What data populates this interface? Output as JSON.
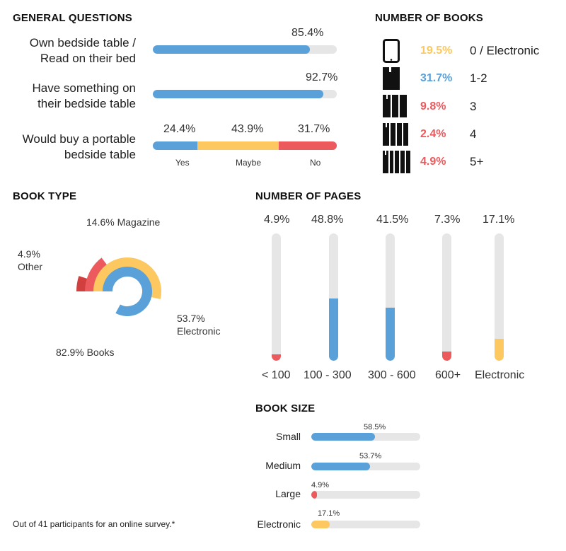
{
  "colors": {
    "blue": "#5aa0d9",
    "yellow": "#fcc85f",
    "red": "#ec5a5e",
    "darkred": "#d23f3f",
    "track": "#e6e6e6",
    "black": "#111111"
  },
  "general": {
    "heading": "GENERAL QUESTIONS",
    "q1": {
      "label_line1": "Own bedside table /",
      "label_line2": "Read on their bed",
      "value": 85.4,
      "value_label": "85.4%"
    },
    "q2": {
      "label_line1": "Have something on",
      "label_line2": "their bedside table",
      "value": 92.7,
      "value_label": "92.7%"
    },
    "q3": {
      "label_line1": "Would buy a portable",
      "label_line2": "bedside table",
      "segments": [
        {
          "name": "Yes",
          "value": 24.4,
          "value_label": "24.4%"
        },
        {
          "name": "Maybe",
          "value": 43.9,
          "value_label": "43.9%"
        },
        {
          "name": "No",
          "value": 31.7,
          "value_label": "31.7%"
        }
      ]
    }
  },
  "books": {
    "heading": "NUMBER OF BOOKS",
    "rows": [
      {
        "icon": "tablet-icon",
        "pct": "19.5%",
        "label": "0 / Electronic"
      },
      {
        "icon": "book-stack-1-icon",
        "pct": "31.7%",
        "label": "1-2"
      },
      {
        "icon": "book-stack-3-icon",
        "pct": "9.8%",
        "label": "3"
      },
      {
        "icon": "book-stack-4-icon",
        "pct": "2.4%",
        "label": "4"
      },
      {
        "icon": "book-stack-5-icon",
        "pct": "4.9%",
        "label": "5+"
      }
    ]
  },
  "book_type": {
    "heading": "BOOK TYPE",
    "labels": {
      "magazine": "14.6% Magazine",
      "other_pct": "4.9%",
      "other_name": "Other",
      "electronic_pct": "53.7%",
      "electronic_name": "Electronic",
      "books": "82.9% Books"
    }
  },
  "pages": {
    "heading": "NUMBER OF PAGES",
    "bars": [
      {
        "label": "< 100",
        "value": 4.9,
        "value_label": "4.9%"
      },
      {
        "label": "100 - 300",
        "value": 48.8,
        "value_label": "48.8%"
      },
      {
        "label": "300 - 600",
        "value": 41.5,
        "value_label": "41.5%"
      },
      {
        "label": "600+",
        "value": 7.3,
        "value_label": "7.3%"
      },
      {
        "label": "Electronic",
        "value": 17.1,
        "value_label": "17.1%"
      }
    ]
  },
  "size": {
    "heading": "BOOK SIZE",
    "bars": [
      {
        "label": "Small",
        "value": 58.5,
        "value_label": "58.5%"
      },
      {
        "label": "Medium",
        "value": 53.7,
        "value_label": "53.7%"
      },
      {
        "label": "Large",
        "value": 4.9,
        "value_label": "4.9%"
      },
      {
        "label": "Electronic",
        "value": 17.1,
        "value_label": "17.1%"
      }
    ]
  },
  "footnote": "Out of 41 participants for an online survey.*",
  "chart_data": [
    {
      "type": "bar",
      "title": "GENERAL QUESTIONS",
      "categories": [
        "Own bedside table / Read on their bed",
        "Have something on their bedside table"
      ],
      "values": [
        85.4,
        92.7
      ],
      "ylim": [
        0,
        100
      ]
    },
    {
      "type": "bar",
      "title": "Would buy a portable bedside table",
      "categories": [
        "Yes",
        "Maybe",
        "No"
      ],
      "values": [
        24.4,
        43.9,
        31.7
      ]
    },
    {
      "type": "bar",
      "title": "NUMBER OF BOOKS",
      "categories": [
        "0 / Electronic",
        "1-2",
        "3",
        "4",
        "5+"
      ],
      "values": [
        19.5,
        31.7,
        9.8,
        2.4,
        4.9
      ]
    },
    {
      "type": "pie",
      "title": "BOOK TYPE",
      "categories": [
        "Books",
        "Electronic",
        "Magazine",
        "Other"
      ],
      "values": [
        82.9,
        53.7,
        14.6,
        4.9
      ]
    },
    {
      "type": "bar",
      "title": "NUMBER OF PAGES",
      "categories": [
        "< 100",
        "100 - 300",
        "300 - 600",
        "600+",
        "Electronic"
      ],
      "values": [
        4.9,
        48.8,
        41.5,
        7.3,
        17.1
      ],
      "ylim": [
        0,
        100
      ]
    },
    {
      "type": "bar",
      "title": "BOOK SIZE",
      "categories": [
        "Small",
        "Medium",
        "Large",
        "Electronic"
      ],
      "values": [
        58.5,
        53.7,
        4.9,
        17.1
      ],
      "ylim": [
        0,
        100
      ]
    }
  ]
}
